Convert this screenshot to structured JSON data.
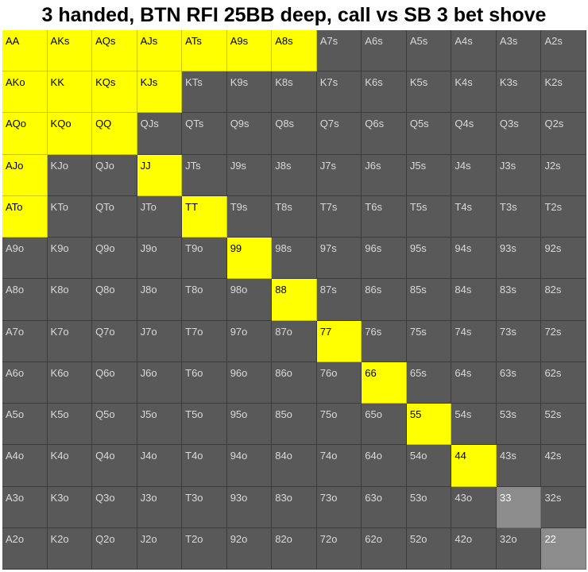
{
  "title": "3 handed, BTN RFI 25BB deep, call vs SB 3 bet shove",
  "colors": {
    "call": "#ffff00",
    "fold": "#595959",
    "highlight": "#8c8c8c"
  },
  "grid": [
    [
      "AA",
      "AKs",
      "AQs",
      "AJs",
      "ATs",
      "A9s",
      "A8s",
      "A7s",
      "A6s",
      "A5s",
      "A4s",
      "A3s",
      "A2s"
    ],
    [
      "AKo",
      "KK",
      "KQs",
      "KJs",
      "KTs",
      "K9s",
      "K8s",
      "K7s",
      "K6s",
      "K5s",
      "K4s",
      "K3s",
      "K2s"
    ],
    [
      "AQo",
      "KQo",
      "QQ",
      "QJs",
      "QTs",
      "Q9s",
      "Q8s",
      "Q7s",
      "Q6s",
      "Q5s",
      "Q4s",
      "Q3s",
      "Q2s"
    ],
    [
      "AJo",
      "KJo",
      "QJo",
      "JJ",
      "JTs",
      "J9s",
      "J8s",
      "J7s",
      "J6s",
      "J5s",
      "J4s",
      "J3s",
      "J2s"
    ],
    [
      "ATo",
      "KTo",
      "QTo",
      "JTo",
      "TT",
      "T9s",
      "T8s",
      "T7s",
      "T6s",
      "T5s",
      "T4s",
      "T3s",
      "T2s"
    ],
    [
      "A9o",
      "K9o",
      "Q9o",
      "J9o",
      "T9o",
      "99",
      "98s",
      "97s",
      "96s",
      "95s",
      "94s",
      "93s",
      "92s"
    ],
    [
      "A8o",
      "K8o",
      "Q8o",
      "J8o",
      "T8o",
      "98o",
      "88",
      "87s",
      "86s",
      "85s",
      "84s",
      "83s",
      "82s"
    ],
    [
      "A7o",
      "K7o",
      "Q7o",
      "J7o",
      "T7o",
      "97o",
      "87o",
      "77",
      "76s",
      "75s",
      "74s",
      "73s",
      "72s"
    ],
    [
      "A6o",
      "K6o",
      "Q6o",
      "J6o",
      "T6o",
      "96o",
      "86o",
      "76o",
      "66",
      "65s",
      "64s",
      "63s",
      "62s"
    ],
    [
      "A5o",
      "K5o",
      "Q5o",
      "J5o",
      "T5o",
      "95o",
      "85o",
      "75o",
      "65o",
      "55",
      "54s",
      "53s",
      "52s"
    ],
    [
      "A4o",
      "K4o",
      "Q4o",
      "J4o",
      "T4o",
      "94o",
      "84o",
      "74o",
      "64o",
      "54o",
      "44",
      "43s",
      "42s"
    ],
    [
      "A3o",
      "K3o",
      "Q3o",
      "J3o",
      "T3o",
      "93o",
      "83o",
      "73o",
      "63o",
      "53o",
      "43o",
      "33",
      "32s"
    ],
    [
      "A2o",
      "K2o",
      "Q2o",
      "J2o",
      "T2o",
      "92o",
      "82o",
      "72o",
      "62o",
      "52o",
      "42o",
      "32o",
      "22"
    ]
  ],
  "call_hands": [
    "AA",
    "AKs",
    "AQs",
    "AJs",
    "ATs",
    "A9s",
    "A8s",
    "AKo",
    "KK",
    "KQs",
    "KJs",
    "AQo",
    "KQo",
    "QQ",
    "AJo",
    "JJ",
    "ATo",
    "TT",
    "99",
    "88",
    "77",
    "66",
    "55",
    "44"
  ],
  "light_hands": [
    "33",
    "22"
  ]
}
